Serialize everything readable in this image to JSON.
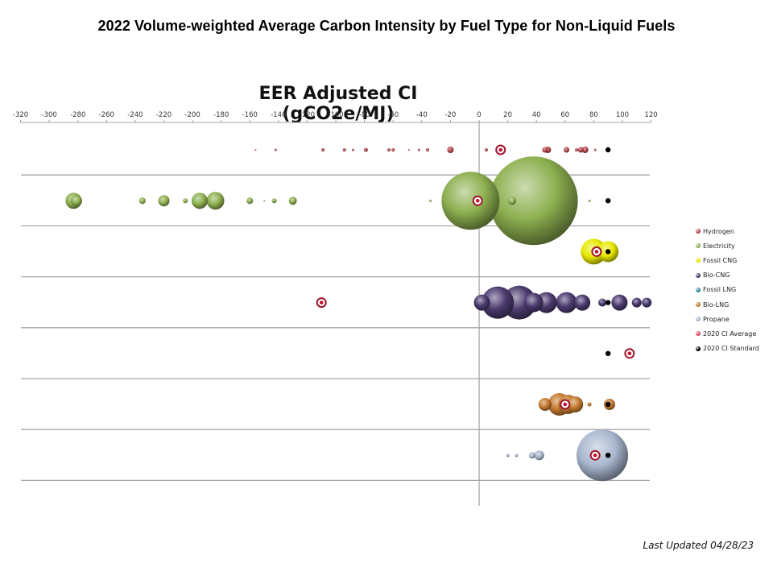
{
  "header": {
    "title": "2022 Volume-weighted  Average Carbon Intensity  by Fuel Type  for Non-Liquid  Fuels"
  },
  "footer": {
    "last_updated": "Last Updated 04/28/23"
  },
  "legend": {
    "items": [
      {
        "label": "Hydrogen",
        "color": "#b5484d"
      },
      {
        "label": "Electricity",
        "color": "#8db050"
      },
      {
        "label": "Fossil CNG",
        "color": "#e8e800"
      },
      {
        "label": "Bio-CNG",
        "color": "#4a3a6e"
      },
      {
        "label": "Fossil LNG",
        "color": "#2f8a9a"
      },
      {
        "label": "Bio-LNG",
        "color": "#c57a30"
      },
      {
        "label": "Propane",
        "color": "#a9b7cf"
      },
      {
        "label": "2020 CI Average",
        "color": "#d94a60"
      },
      {
        "label": "2020 CI Standard",
        "color": "#000000"
      }
    ]
  },
  "chart_data": {
    "type": "scatter",
    "subtype": "bubble",
    "title": "2022 Volume-weighted  Average Carbon Intensity  by Fuel Type  for Non-Liquid  Fuels",
    "xlabel": "EER Adjusted CI (gCO2e/MJ)",
    "ylabel": "",
    "xlim": [
      -320,
      120
    ],
    "xticks": [
      -320,
      -300,
      -280,
      -260,
      -240,
      -220,
      -200,
      -180,
      -160,
      -140,
      -120,
      -100,
      -80,
      -60,
      -40,
      -20,
      0,
      20,
      40,
      60,
      80,
      100,
      120
    ],
    "x_axis_position": "top",
    "grid": "horizontal row separators",
    "legend_position": "right",
    "rows": [
      "Hydrogen",
      "Electricity",
      "Fossil CNG",
      "Bio-CNG",
      "Fossil LNG",
      "Bio-LNG",
      "Propane"
    ],
    "series": [
      {
        "name": "Hydrogen",
        "row": 0,
        "color": "#b5484d",
        "points": [
          [
            -156,
            1
          ],
          [
            -142,
            1.5
          ],
          [
            -109,
            2
          ],
          [
            -94,
            2
          ],
          [
            -88,
            1.5
          ],
          [
            -79,
            2.5
          ],
          [
            -63,
            2
          ],
          [
            -60,
            2
          ],
          [
            -49,
            1
          ],
          [
            -42,
            1.5
          ],
          [
            -36,
            2
          ],
          [
            -20,
            4
          ],
          [
            5,
            2
          ],
          [
            46,
            3.5
          ],
          [
            48,
            4
          ],
          [
            61,
            3.5
          ],
          [
            68,
            2
          ],
          [
            71,
            3.5
          ],
          [
            74,
            4
          ],
          [
            81,
            1.5
          ]
        ]
      },
      {
        "name": "Electricity",
        "row": 1,
        "color": "#8db050",
        "points": [
          [
            -283,
            10
          ],
          [
            -281,
            7
          ],
          [
            -235,
            4
          ],
          [
            -220,
            7
          ],
          [
            -205,
            3
          ],
          [
            -195,
            10
          ],
          [
            -184,
            11
          ],
          [
            -160,
            4
          ],
          [
            -150,
            1
          ],
          [
            -143,
            3
          ],
          [
            -130,
            5
          ],
          [
            -34,
            1.5
          ],
          [
            -6,
            36
          ],
          [
            23,
            5
          ],
          [
            38,
            55
          ],
          [
            77,
            1.5
          ]
        ]
      },
      {
        "name": "Fossil CNG",
        "row": 2,
        "color": "#e8e800",
        "points": [
          [
            80,
            16
          ],
          [
            90,
            13
          ]
        ]
      },
      {
        "name": "Bio-CNG",
        "row": 3,
        "color": "#4a3a6e",
        "points": [
          [
            2,
            10
          ],
          [
            13,
            20
          ],
          [
            28,
            21
          ],
          [
            38,
            12
          ],
          [
            47,
            13
          ],
          [
            61,
            13
          ],
          [
            72,
            10
          ],
          [
            86,
            5
          ],
          [
            98,
            10
          ],
          [
            110,
            6
          ],
          [
            117,
            6
          ]
        ]
      },
      {
        "name": "Fossil LNG",
        "row": 4,
        "color": "#2f8a9a",
        "points": []
      },
      {
        "name": "Bio-LNG",
        "row": 5,
        "color": "#c57a30",
        "points": [
          [
            46,
            8
          ],
          [
            56,
            14
          ],
          [
            62,
            12
          ],
          [
            67,
            10
          ],
          [
            77,
            2.5
          ],
          [
            91,
            7
          ]
        ]
      },
      {
        "name": "Propane",
        "row": 6,
        "color": "#a9b7cf",
        "points": [
          [
            20,
            2
          ],
          [
            26,
            2
          ],
          [
            37,
            4
          ],
          [
            42,
            6
          ],
          [
            86,
            32
          ]
        ]
      },
      {
        "name": "2020 CI Average",
        "row": "all",
        "color": "#d94a60",
        "points": [
          [
            15,
            0
          ],
          [
            -1,
            1
          ],
          [
            82,
            2
          ],
          [
            -110,
            3
          ],
          [
            105,
            4
          ],
          [
            60,
            5
          ],
          [
            81,
            6
          ]
        ]
      },
      {
        "name": "2020 CI Standard",
        "row": "all",
        "color": "#000000",
        "points": [
          [
            90,
            0
          ],
          [
            90,
            1
          ],
          [
            90,
            2
          ],
          [
            90,
            3
          ],
          [
            90,
            4
          ],
          [
            90,
            5
          ],
          [
            90,
            6
          ]
        ]
      }
    ]
  }
}
